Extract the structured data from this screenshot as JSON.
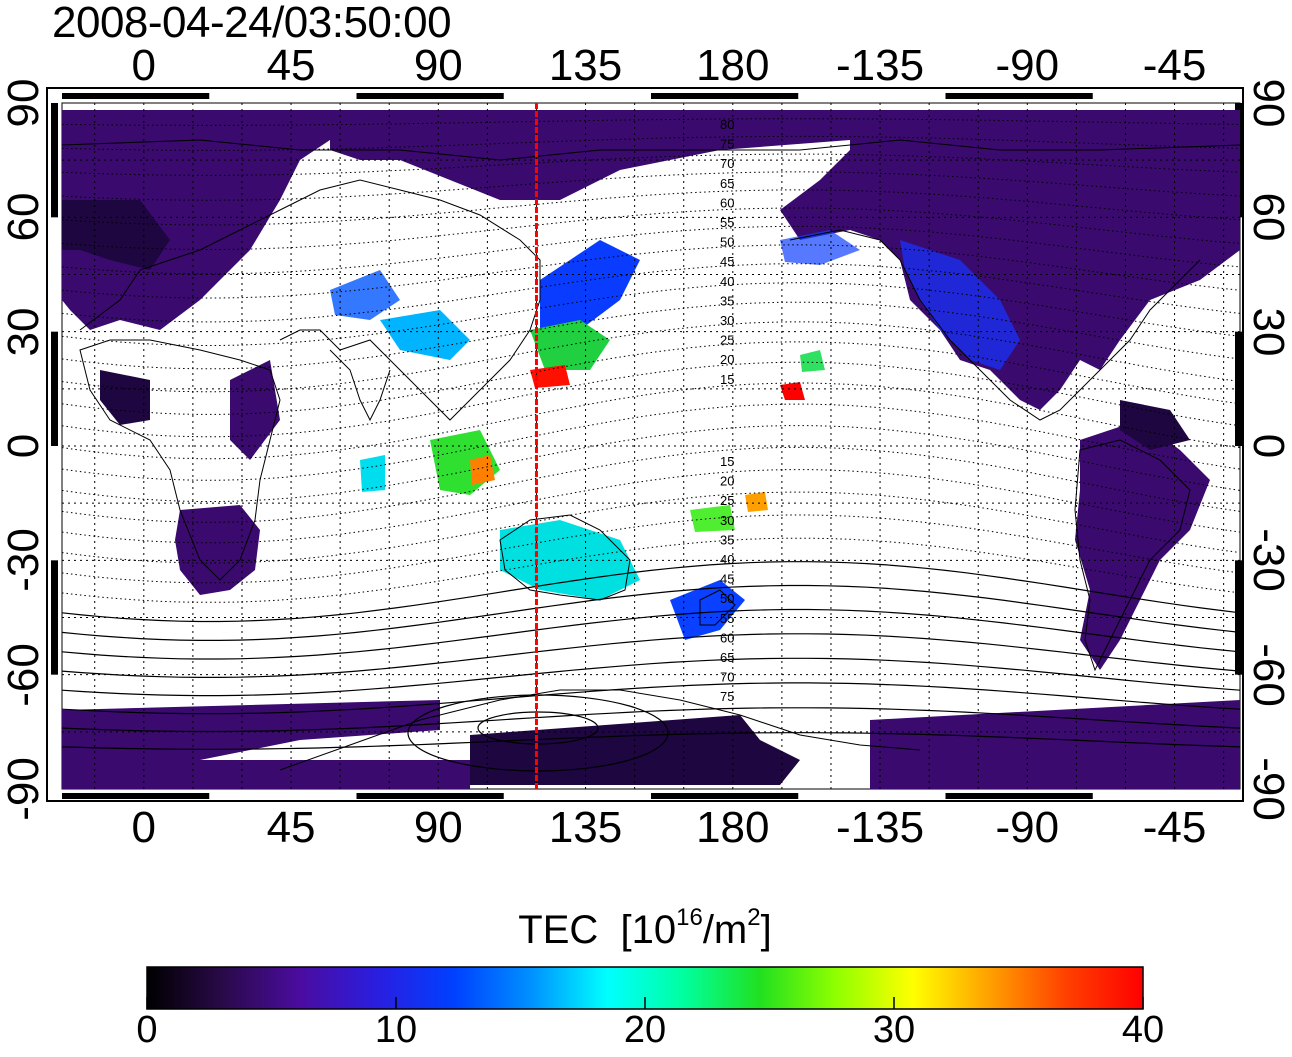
{
  "title": "2008-04-24/03:50:00",
  "map": {
    "top_ticks": [
      "0",
      "45",
      "90",
      "135",
      "180",
      "-135",
      "-90",
      "-45"
    ],
    "bottom_ticks": [
      "0",
      "45",
      "90",
      "135",
      "180",
      "-135",
      "-90",
      "-45"
    ],
    "left_ticks": [
      "90",
      "60",
      "30",
      "0",
      "-30",
      "-60",
      "-90"
    ],
    "right_ticks": [
      "90",
      "60",
      "30",
      "0",
      "-30",
      "-60",
      "-90"
    ],
    "meridian_longitude": 120,
    "meridian_color": "#ff0000",
    "contour_labels_north": [
      "80",
      "75",
      "70",
      "65",
      "60",
      "55",
      "50",
      "45",
      "40",
      "35",
      "30",
      "25",
      "20",
      "15"
    ],
    "contour_labels_south": [
      "15",
      "20",
      "25",
      "30",
      "35",
      "40",
      "45",
      "50",
      "55",
      "60",
      "65",
      "70",
      "75"
    ]
  },
  "colorbar": {
    "title": "TEC",
    "unit_base": "[10",
    "unit_exp": "16",
    "unit_mid": "/m",
    "unit_exp2": "2",
    "unit_end": "]",
    "ticks": [
      "0",
      "10",
      "20",
      "30",
      "40"
    ],
    "colors": [
      "#000000",
      "#2a0a4a",
      "#4b0ca0",
      "#2a1ee0",
      "#0040ff",
      "#0090ff",
      "#00ffff",
      "#00ffa0",
      "#20e020",
      "#90ff00",
      "#ffff00",
      "#ffa000",
      "#ff4000",
      "#ff0000"
    ]
  }
}
